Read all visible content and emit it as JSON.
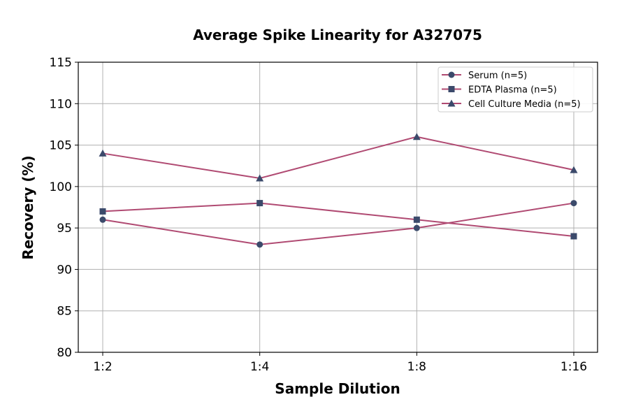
{
  "chart_data": {
    "type": "line",
    "title": "Average Spike Linearity for A327075",
    "xlabel": "Sample Dilution",
    "ylabel": "Recovery (%)",
    "categories": [
      "1:2",
      "1:4",
      "1:8",
      "1:16"
    ],
    "ylim": [
      80,
      115
    ],
    "yticks": [
      80,
      85,
      90,
      95,
      100,
      105,
      110,
      115
    ],
    "grid": true,
    "legend_position": "top-right",
    "line_color": "#b04a72",
    "marker_color": "#3b4a6b",
    "series": [
      {
        "name": "Serum (n=5)",
        "marker": "circle",
        "values": [
          96,
          93,
          95,
          98
        ]
      },
      {
        "name": "EDTA Plasma (n=5)",
        "marker": "square",
        "values": [
          97,
          98,
          96,
          94
        ]
      },
      {
        "name": "Cell Culture Media (n=5)",
        "marker": "triangle",
        "values": [
          104,
          101,
          106,
          102
        ]
      }
    ]
  }
}
